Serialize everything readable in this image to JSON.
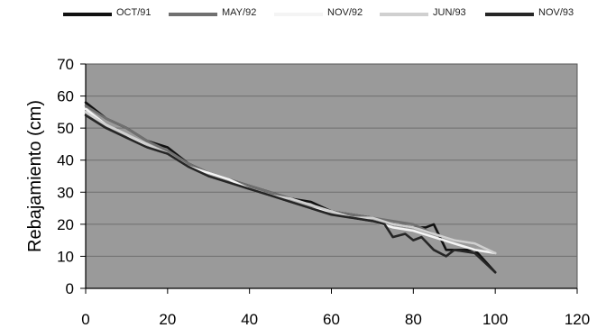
{
  "chart_data": {
    "type": "line",
    "title": "",
    "xlabel": "",
    "ylabel": "Rebajamiento (cm)",
    "xlim": [
      0,
      120
    ],
    "ylim": [
      0,
      70
    ],
    "xticks": [
      0,
      20,
      40,
      60,
      80,
      100,
      120
    ],
    "yticks": [
      0,
      10,
      20,
      30,
      40,
      50,
      60,
      70
    ],
    "grid": "horizontal",
    "legend_position": "top",
    "plot_background": "#9a9a9a",
    "series": [
      {
        "name": "OCT/91",
        "color": "#111111",
        "x": [
          0,
          5,
          10,
          15,
          20,
          25,
          30,
          35,
          40,
          45,
          50,
          55,
          60,
          65,
          70,
          75,
          80,
          83,
          85,
          88,
          90,
          95,
          100
        ],
        "y": [
          58,
          53,
          50,
          46,
          44,
          39,
          36,
          34,
          32,
          30,
          28,
          27,
          24,
          23,
          22,
          20,
          19,
          19,
          20,
          12,
          12,
          12,
          5
        ]
      },
      {
        "name": "MAY/92",
        "color": "#707070",
        "x": [
          0,
          5,
          10,
          15,
          20,
          25,
          30,
          35,
          40,
          45,
          50,
          55,
          60,
          65,
          70,
          75,
          80,
          85,
          90,
          95,
          100
        ],
        "y": [
          57,
          53,
          50,
          46,
          43,
          39,
          36,
          34,
          32,
          30,
          28,
          26,
          24,
          23,
          22,
          21,
          20,
          17,
          15,
          14,
          11
        ]
      },
      {
        "name": "NOV/92",
        "color": "#f4f4f4",
        "x": [
          0,
          5,
          10,
          15,
          20,
          25,
          30,
          35,
          40,
          45,
          50,
          55,
          60,
          65,
          70,
          75,
          80,
          85,
          90,
          95,
          100
        ],
        "y": [
          56,
          51,
          48,
          44,
          42,
          38,
          36,
          34,
          31,
          29,
          27,
          25,
          24,
          22,
          21,
          19,
          18,
          16,
          14,
          12,
          11
        ]
      },
      {
        "name": "JUN/93",
        "color": "#d0d0d0",
        "x": [
          0,
          5,
          10,
          15,
          20,
          25,
          30,
          35,
          40,
          45,
          50,
          55,
          60,
          65,
          70,
          75,
          80,
          85,
          90,
          95,
          100
        ],
        "y": [
          55,
          51,
          48,
          45,
          42,
          38,
          35,
          33,
          31,
          29,
          28,
          26,
          24,
          22,
          22,
          20,
          19,
          17,
          15,
          14,
          11
        ]
      },
      {
        "name": "NOV/93",
        "color": "#262626",
        "x": [
          0,
          5,
          10,
          15,
          20,
          25,
          30,
          35,
          40,
          45,
          50,
          55,
          60,
          65,
          70,
          73,
          75,
          78,
          80,
          82,
          85,
          88,
          90,
          95,
          100
        ],
        "y": [
          54,
          50,
          47,
          44,
          42,
          38,
          35,
          33,
          31,
          29,
          27,
          25,
          23,
          22,
          21,
          20,
          16,
          17,
          15,
          16,
          12,
          10,
          12,
          11,
          5
        ]
      }
    ]
  }
}
